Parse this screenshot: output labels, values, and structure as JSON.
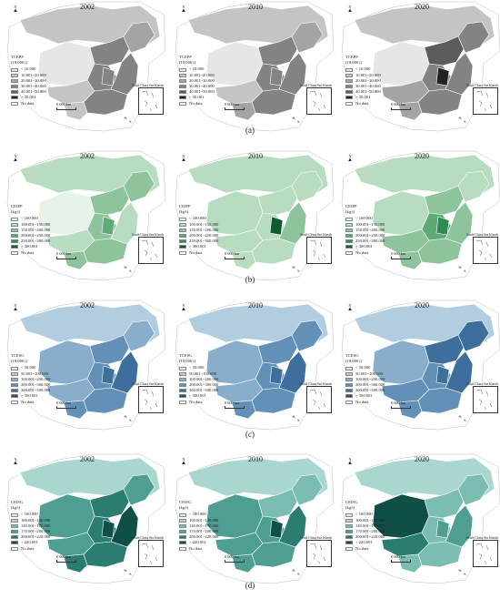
{
  "north_label": "N",
  "inset_label": "South China Sea Islands",
  "scale_text": "0   600 km",
  "rows": [
    {
      "id": "a",
      "caption": "(a)",
      "legend_title": "TCEPP",
      "legend_unit": "(10,000 t)",
      "classes": [
        "< 10.000",
        "10.001~20.000",
        "20.001~30.000",
        "30.001~40.000",
        "40.001~50.000",
        "> 50.001",
        "No data"
      ],
      "colors": [
        "#e6e6e6",
        "#c4c4c4",
        "#a4a4a4",
        "#838383",
        "#5c5c5c",
        "#232323",
        "#ffffff"
      ],
      "years": [
        "2002",
        "2010",
        "2020"
      ],
      "maps": [
        {
          "outer": 1,
          "west": 0,
          "nw": 1,
          "north": 3,
          "ne": 2,
          "central": 3,
          "east": 3,
          "south": 3,
          "sw": 1,
          "hot": 3
        },
        {
          "outer": 1,
          "west": 0,
          "nw": 1,
          "north": 3,
          "ne": 2,
          "central": 3,
          "east": 3,
          "south": 3,
          "sw": 2,
          "hot": 3
        },
        {
          "outer": 1,
          "west": 0,
          "nw": 2,
          "north": 4,
          "ne": 3,
          "central": 3,
          "east": 3,
          "south": 3,
          "sw": 2,
          "hot": 5
        }
      ]
    },
    {
      "id": "b",
      "caption": "(b)",
      "legend_title": "CEIPP",
      "legend_unit": "(kg/t)",
      "classes": [
        "< 100.000",
        "100.001~150.000",
        "150.001~200.000",
        "200.001~250.000",
        "250.001~300.000",
        "> 300.001",
        "No data"
      ],
      "colors": [
        "#e6f3e8",
        "#b8dcc0",
        "#8dc49b",
        "#5fa878",
        "#2f8b55",
        "#0e5c2e",
        "#ffffff"
      ],
      "years": [
        "2002",
        "2010",
        "2020"
      ],
      "maps": [
        {
          "outer": 1,
          "west": 0,
          "nw": 1,
          "north": 2,
          "ne": 2,
          "central": 2,
          "east": 1,
          "south": 2,
          "sw": 2,
          "hot": 3
        },
        {
          "outer": 1,
          "west": 1,
          "nw": 1,
          "north": 1,
          "ne": 1,
          "central": 1,
          "east": 2,
          "south": 1,
          "sw": 1,
          "hot": 5
        },
        {
          "outer": 1,
          "west": 1,
          "nw": 2,
          "north": 2,
          "ne": 1,
          "central": 3,
          "east": 2,
          "south": 2,
          "sw": 2,
          "hot": 4
        }
      ]
    },
    {
      "id": "c",
      "caption": "(c)",
      "legend_title": "TCESG",
      "legend_unit": "(10,000 t)",
      "classes": [
        "< 50.000",
        "50.001~100.000",
        "100.001~200.000",
        "200.001~300.000",
        "300.001~500.000",
        "> 500.001",
        "No data"
      ],
      "colors": [
        "#ddeaf2",
        "#b3cde0",
        "#89aecb",
        "#6390b6",
        "#3e6f9c",
        "#1d4c78",
        "#ffffff"
      ],
      "years": [
        "2002",
        "2010",
        "2020"
      ],
      "maps": [
        {
          "outer": 1,
          "west": 2,
          "nw": 2,
          "north": 3,
          "ne": 2,
          "central": 3,
          "east": 4,
          "south": 3,
          "sw": 3,
          "hot": 4
        },
        {
          "outer": 1,
          "west": 2,
          "nw": 2,
          "north": 3,
          "ne": 3,
          "central": 3,
          "east": 4,
          "south": 3,
          "sw": 3,
          "hot": 4
        },
        {
          "outer": 1,
          "west": 2,
          "nw": 3,
          "north": 4,
          "ne": 4,
          "central": 3,
          "east": 4,
          "south": 3,
          "sw": 3,
          "hot": 4
        }
      ]
    },
    {
      "id": "d",
      "caption": "(d)",
      "legend_title": "CEISG",
      "legend_unit": "(kg/t)",
      "classes": [
        "< 100.000",
        "100.001~140.000",
        "140.001~170.000",
        "170.001~200.000",
        "200.001~220.000",
        "> 220.001",
        "No data"
      ],
      "colors": [
        "#dcefec",
        "#a9d6cf",
        "#7cbdb2",
        "#4f9e92",
        "#2c7d71",
        "#0f4f46",
        "#ffffff"
      ],
      "years": [
        "2002",
        "2010",
        "2020"
      ],
      "maps": [
        {
          "outer": 1,
          "west": 3,
          "nw": 3,
          "north": 4,
          "ne": 3,
          "central": 4,
          "east": 5,
          "south": 4,
          "sw": 4,
          "hot": 5
        },
        {
          "outer": 1,
          "west": 3,
          "nw": 3,
          "north": 2,
          "ne": 2,
          "central": 3,
          "east": 4,
          "south": 3,
          "sw": 3,
          "hot": 5
        },
        {
          "outer": 1,
          "west": 5,
          "nw": 4,
          "north": 2,
          "ne": 2,
          "central": 2,
          "east": 3,
          "south": 2,
          "sw": 2,
          "hot": 3
        }
      ]
    }
  ]
}
